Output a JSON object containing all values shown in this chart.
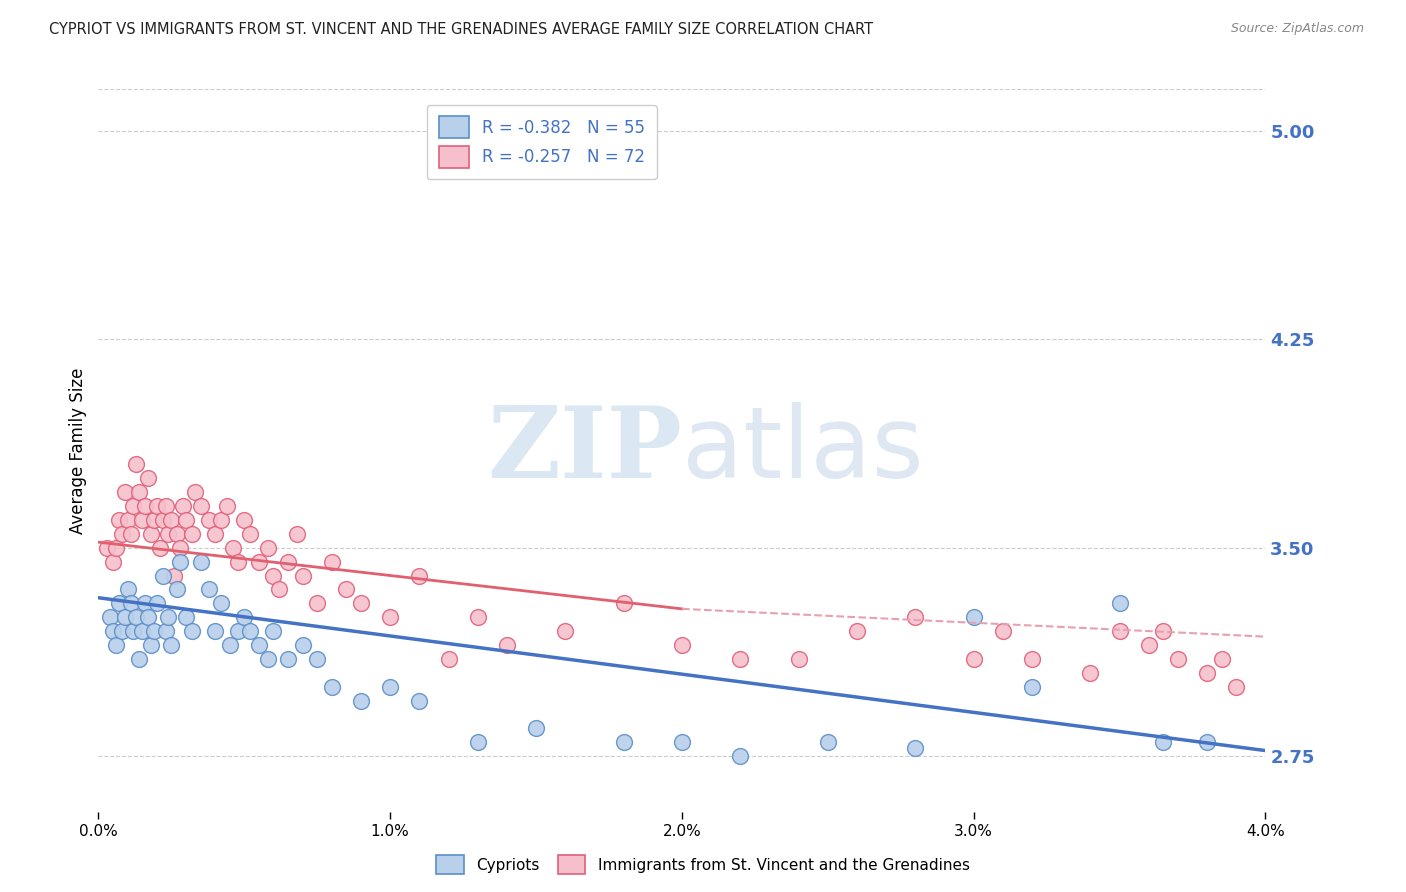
{
  "title": "CYPRIOT VS IMMIGRANTS FROM ST. VINCENT AND THE GRENADINES AVERAGE FAMILY SIZE CORRELATION CHART",
  "source": "Source: ZipAtlas.com",
  "ylabel": "Average Family Size",
  "y_ticks": [
    2.75,
    3.5,
    4.25,
    5.0
  ],
  "xlim": [
    0.0,
    4.0
  ],
  "ylim": [
    2.55,
    5.15
  ],
  "watermark_zip": "ZIP",
  "watermark_atlas": "atlas",
  "blue_series": {
    "name": "Cypriots",
    "fill_color": "#b8d0ea",
    "edge_color": "#5b8fc9",
    "R": -0.382,
    "N": 55,
    "x": [
      0.04,
      0.05,
      0.06,
      0.07,
      0.08,
      0.09,
      0.1,
      0.11,
      0.12,
      0.13,
      0.14,
      0.15,
      0.16,
      0.17,
      0.18,
      0.19,
      0.2,
      0.22,
      0.23,
      0.24,
      0.25,
      0.27,
      0.28,
      0.3,
      0.32,
      0.35,
      0.38,
      0.4,
      0.42,
      0.45,
      0.48,
      0.5,
      0.52,
      0.55,
      0.58,
      0.6,
      0.65,
      0.7,
      0.75,
      0.8,
      0.9,
      1.0,
      1.1,
      1.3,
      1.5,
      1.8,
      2.0,
      2.2,
      2.5,
      2.8,
      3.0,
      3.2,
      3.5,
      3.65,
      3.8
    ],
    "y": [
      3.25,
      3.2,
      3.15,
      3.3,
      3.2,
      3.25,
      3.35,
      3.3,
      3.2,
      3.25,
      3.1,
      3.2,
      3.3,
      3.25,
      3.15,
      3.2,
      3.3,
      3.4,
      3.2,
      3.25,
      3.15,
      3.35,
      3.45,
      3.25,
      3.2,
      3.45,
      3.35,
      3.2,
      3.3,
      3.15,
      3.2,
      3.25,
      3.2,
      3.15,
      3.1,
      3.2,
      3.1,
      3.15,
      3.1,
      3.0,
      2.95,
      3.0,
      2.95,
      2.8,
      2.85,
      2.8,
      2.8,
      2.75,
      2.8,
      2.78,
      3.25,
      3.0,
      3.3,
      2.8,
      2.8
    ]
  },
  "pink_series": {
    "name": "Immigrants from St. Vincent and the Grenadines",
    "fill_color": "#f5c0cc",
    "edge_color": "#e0607a",
    "R": -0.257,
    "N": 72,
    "x": [
      0.03,
      0.05,
      0.06,
      0.07,
      0.08,
      0.09,
      0.1,
      0.11,
      0.12,
      0.13,
      0.14,
      0.15,
      0.16,
      0.17,
      0.18,
      0.19,
      0.2,
      0.21,
      0.22,
      0.23,
      0.24,
      0.25,
      0.26,
      0.27,
      0.28,
      0.29,
      0.3,
      0.32,
      0.33,
      0.35,
      0.38,
      0.4,
      0.42,
      0.44,
      0.46,
      0.48,
      0.5,
      0.52,
      0.55,
      0.58,
      0.6,
      0.62,
      0.65,
      0.68,
      0.7,
      0.75,
      0.8,
      0.85,
      0.9,
      1.0,
      1.1,
      1.2,
      1.3,
      1.4,
      1.6,
      1.8,
      2.0,
      2.2,
      2.4,
      2.6,
      2.8,
      3.0,
      3.1,
      3.2,
      3.4,
      3.5,
      3.6,
      3.65,
      3.7,
      3.8,
      3.85,
      3.9
    ],
    "y": [
      3.5,
      3.45,
      3.5,
      3.6,
      3.55,
      3.7,
      3.6,
      3.55,
      3.65,
      3.8,
      3.7,
      3.6,
      3.65,
      3.75,
      3.55,
      3.6,
      3.65,
      3.5,
      3.6,
      3.65,
      3.55,
      3.6,
      3.4,
      3.55,
      3.5,
      3.65,
      3.6,
      3.55,
      3.7,
      3.65,
      3.6,
      3.55,
      3.6,
      3.65,
      3.5,
      3.45,
      3.6,
      3.55,
      3.45,
      3.5,
      3.4,
      3.35,
      3.45,
      3.55,
      3.4,
      3.3,
      3.45,
      3.35,
      3.3,
      3.25,
      3.4,
      3.1,
      3.25,
      3.15,
      3.2,
      3.3,
      3.15,
      3.1,
      3.1,
      3.2,
      3.25,
      3.1,
      3.2,
      3.1,
      3.05,
      3.2,
      3.15,
      3.2,
      3.1,
      3.05,
      3.1,
      3.0
    ]
  },
  "blue_trend": {
    "x_start": 0.0,
    "y_start": 3.32,
    "x_end": 4.0,
    "y_end": 2.77,
    "color": "#4472c4",
    "style": "solid",
    "linewidth": 2.5
  },
  "pink_trend_solid": {
    "x_start": 0.0,
    "y_start": 3.52,
    "x_end": 2.0,
    "y_end": 3.28,
    "color": "#e06070",
    "style": "solid",
    "linewidth": 2.0
  },
  "pink_trend_dashed": {
    "x_start": 2.0,
    "y_start": 3.28,
    "x_end": 4.0,
    "y_end": 3.18,
    "color": "#e8a0b0",
    "style": "dashed",
    "linewidth": 1.5
  },
  "background_color": "#ffffff",
  "grid_color": "#cccccc",
  "axis_label_color": "#4472c4",
  "title_color": "#222222",
  "title_fontsize": 10.5,
  "source_fontsize": 9,
  "axis_fontsize": 11
}
